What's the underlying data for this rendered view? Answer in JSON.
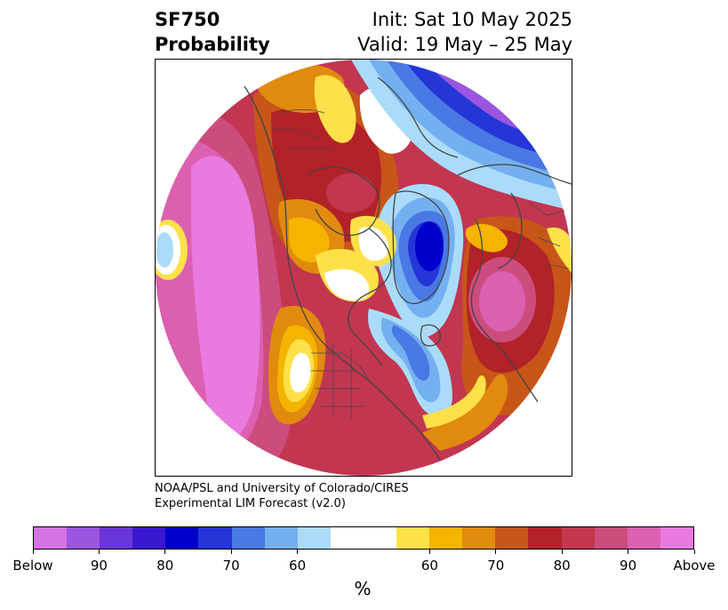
{
  "header": {
    "title_line1": "SF750",
    "title_line2": "Probability",
    "init": "Init: Sat 10 May 2025",
    "valid": "Valid: 19 May – 25 May"
  },
  "credit": {
    "line1": "NOAA/PSL and University of Colorado/CIRES",
    "line2": "Experimental LIM Forecast (v2.0)"
  },
  "colorbar": {
    "colors": [
      "#d672e6",
      "#9b55e0",
      "#6a35d8",
      "#3a18d0",
      "#0000cc",
      "#2436d8",
      "#4a78e4",
      "#74b0f0",
      "#aadcfa",
      "#ffffff",
      "#ffffff",
      "#fee14a",
      "#f4b400",
      "#e08a0e",
      "#c85618",
      "#b22228",
      "#c23650",
      "#cc4c7e",
      "#dc60b0",
      "#e87ae0"
    ],
    "labels": [
      "Below",
      "90",
      "80",
      "70",
      "60",
      "60",
      "70",
      "80",
      "90",
      "Above"
    ],
    "unit": "%"
  },
  "map": {
    "colors": {
      "ocean_land_bg": "#ffffff",
      "coast": "#444444",
      "strong_above": "#e87ae0",
      "above_90": "#dc60b0",
      "above_80": "#c23650",
      "above_75": "#b22228",
      "above_70": "#c85618",
      "above_65": "#e08a0e",
      "above_60": "#f4b400",
      "above_55": "#fee14a",
      "below_55": "#aadcfa",
      "below_60": "#74b0f0",
      "below_70": "#4a78e4",
      "below_80": "#2436d8",
      "below_90": "#0000cc",
      "below_purple": "#9b55e0"
    }
  }
}
